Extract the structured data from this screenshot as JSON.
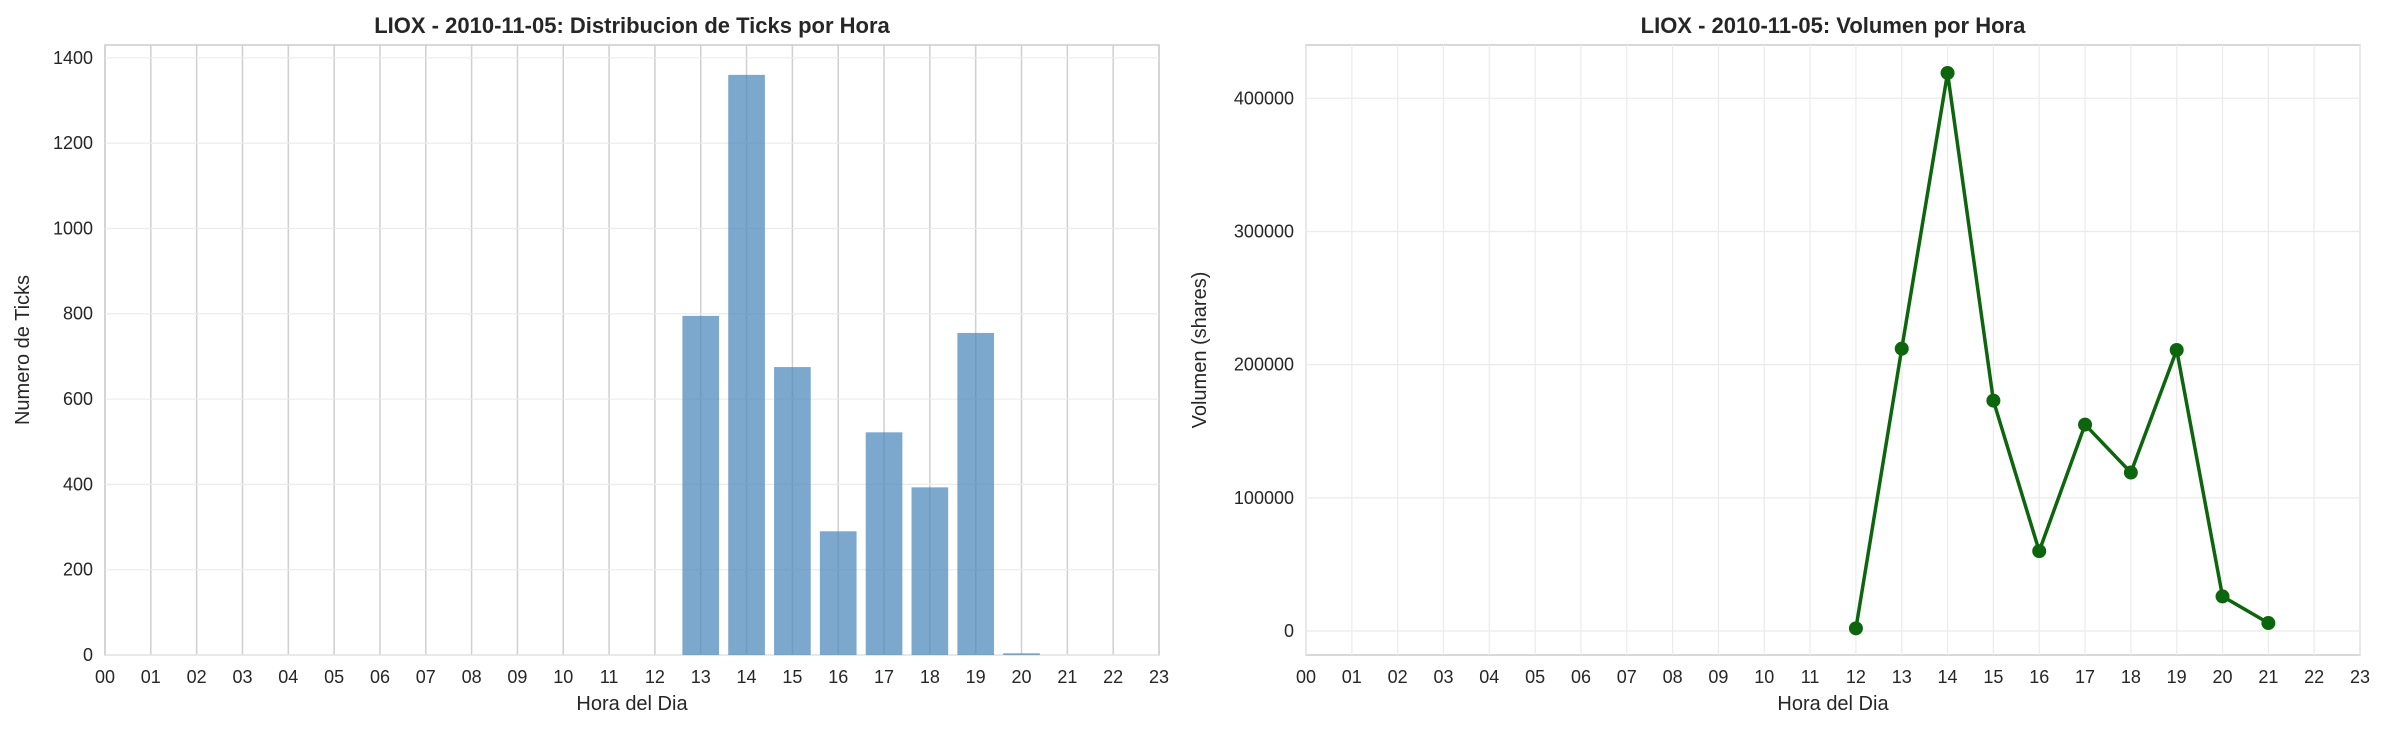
{
  "chart_data": [
    {
      "type": "bar",
      "title": "LIOX - 2010-11-05: Distribucion de Ticks por Hora",
      "xlabel": "Hora del Dia",
      "ylabel": "Numero de Ticks",
      "categories": [
        "00",
        "01",
        "02",
        "03",
        "04",
        "05",
        "06",
        "07",
        "08",
        "09",
        "10",
        "11",
        "12",
        "13",
        "14",
        "15",
        "16",
        "17",
        "18",
        "19",
        "20",
        "21",
        "22",
        "23"
      ],
      "values": [
        0,
        0,
        0,
        0,
        0,
        0,
        0,
        0,
        0,
        0,
        0,
        0,
        0,
        795,
        1360,
        675,
        290,
        522,
        393,
        755,
        4,
        0,
        0,
        0
      ],
      "ylim": [
        0,
        1430
      ],
      "yticks": [
        "0",
        "200",
        "400",
        "600",
        "800",
        "1000",
        "1200",
        "1400"
      ],
      "grid": true,
      "color": "#4a86bb"
    },
    {
      "type": "line",
      "title": "LIOX - 2010-11-05: Volumen por Hora",
      "xlabel": "Hora del Dia",
      "ylabel": "Volumen (shares)",
      "categories": [
        "00",
        "01",
        "02",
        "03",
        "04",
        "05",
        "06",
        "07",
        "08",
        "09",
        "10",
        "11",
        "12",
        "13",
        "14",
        "15",
        "16",
        "17",
        "18",
        "19",
        "20",
        "21",
        "22",
        "23"
      ],
      "x": [
        12,
        13,
        14,
        15,
        16,
        17,
        18,
        19,
        20,
        21
      ],
      "values": [
        2000,
        212000,
        419000,
        173000,
        60000,
        155000,
        119000,
        211000,
        26000,
        6000
      ],
      "ylim": [
        -18000,
        440000
      ],
      "yticks": [
        "0",
        "100000",
        "200000",
        "300000",
        "400000"
      ],
      "grid": true,
      "color": "#0d660d"
    }
  ]
}
